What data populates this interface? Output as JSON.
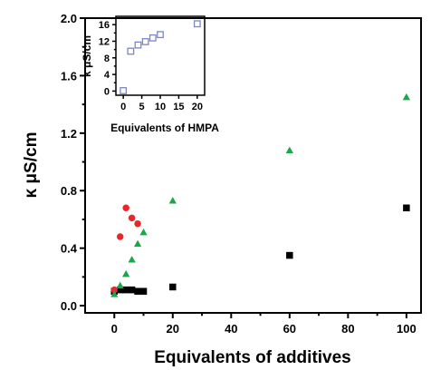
{
  "chart_data": [
    {
      "type": "scatter",
      "xlabel": "Equivalents of additives",
      "ylabel": "κ μS/cm",
      "xlim": [
        -10,
        105
      ],
      "ylim": [
        -0.05,
        2.0
      ],
      "xticks": [
        0,
        20,
        40,
        60,
        80,
        100
      ],
      "yticks": [
        0.0,
        0.4,
        0.8,
        1.2,
        1.6,
        2.0
      ],
      "ytick_labels": [
        "0.0",
        "0.4",
        "0.8",
        "1.2",
        "1.6",
        "2.0"
      ],
      "grid": false,
      "series": [
        {
          "marker": "square",
          "color": "#000000",
          "x": [
            0,
            2,
            4,
            6,
            8,
            10,
            20,
            60,
            100
          ],
          "y": [
            0.1,
            0.11,
            0.11,
            0.11,
            0.1,
            0.1,
            0.13,
            0.35,
            0.68
          ]
        },
        {
          "marker": "circle",
          "color": "#e8262b",
          "x": [
            0,
            2,
            4,
            6,
            8
          ],
          "y": [
            0.11,
            0.48,
            0.68,
            0.61,
            0.57
          ]
        },
        {
          "marker": "triangle",
          "color": "#1aa64a",
          "x": [
            0,
            2,
            4,
            6,
            8,
            10,
            20,
            60,
            100
          ],
          "y": [
            0.08,
            0.14,
            0.22,
            0.32,
            0.43,
            0.51,
            0.73,
            1.08,
            1.45
          ]
        }
      ]
    },
    {
      "type": "scatter",
      "xlabel": "Equivalents of HMPA",
      "ylabel": "k μS/cm",
      "xlim": [
        -2,
        22
      ],
      "ylim": [
        -1,
        18
      ],
      "xticks": [
        0,
        5,
        10,
        15,
        20
      ],
      "yticks": [
        0,
        4,
        8,
        12,
        16
      ],
      "grid": false,
      "series": [
        {
          "marker": "open-square",
          "color": "#7b86c9",
          "x": [
            0,
            2,
            4,
            6,
            8,
            10,
            20
          ],
          "y": [
            0.1,
            9.6,
            11.1,
            11.9,
            12.8,
            13.6,
            16.2
          ]
        }
      ]
    }
  ]
}
